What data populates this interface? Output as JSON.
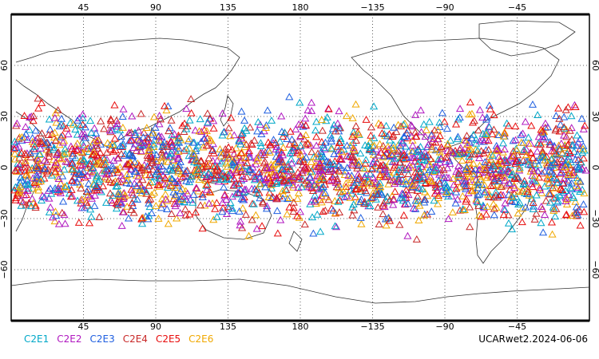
{
  "chart_data": {
    "type": "scatter",
    "projection": "cylindrical-equidistant",
    "center_lon": 180,
    "lon_range": [
      0,
      360
    ],
    "lat_range": [
      -90,
      90
    ],
    "x_tick_labels": [
      "45",
      "90",
      "135",
      "180",
      "−135",
      "−90",
      "−45"
    ],
    "y_tick_labels_left": [
      "60",
      "30",
      "0",
      "−30",
      "−60"
    ],
    "y_tick_labels_right": [
      "60",
      "30",
      "0",
      "−30",
      "−60"
    ],
    "gridlines": "dotted",
    "marker": "open-triangle",
    "series": [
      {
        "name": "C2E1",
        "color": "#00a8c8"
      },
      {
        "name": "C2E2",
        "color": "#b018c0"
      },
      {
        "name": "C2E3",
        "color": "#1f5fe0"
      },
      {
        "name": "C2E4",
        "color": "#c82828"
      },
      {
        "name": "C2E5",
        "color": "#e80c0c"
      },
      {
        "name": "C2E6",
        "color": "#f0a800"
      }
    ],
    "occultation_lat_band": [
      -45,
      45
    ],
    "stamp": "UCARwet2.2024-06-06"
  }
}
